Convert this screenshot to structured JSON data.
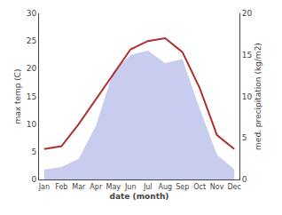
{
  "chart_data": {
    "type": "line",
    "xlabel": "date (month)",
    "ylabel": "max temp (C)",
    "y2label": "med. precipitation (kg/m2)",
    "categories": [
      "Jan",
      "Feb",
      "Mar",
      "Apr",
      "May",
      "Jun",
      "Jul",
      "Aug",
      "Sep",
      "Oct",
      "Nov",
      "Dec"
    ],
    "series": [
      {
        "type": "area",
        "axis": "y2",
        "color": "#c8ccee",
        "values": [
          1.2,
          1.5,
          2.5,
          6.5,
          13.0,
          15.0,
          15.5,
          14.0,
          14.5,
          8.5,
          3.0,
          1.2
        ]
      },
      {
        "type": "line",
        "color": "#b03030",
        "values": [
          5.5,
          6.0,
          10.0,
          14.5,
          19.0,
          23.5,
          25.0,
          25.5,
          23.0,
          16.5,
          8.0,
          5.5
        ]
      }
    ],
    "ylim": [
      0,
      30
    ],
    "yticks": [
      0,
      5,
      10,
      15,
      20,
      25,
      30
    ],
    "y2lim": [
      0,
      20
    ],
    "y2ticks": [
      0,
      5,
      10,
      15,
      20
    ],
    "grid": false,
    "legend": false
  }
}
